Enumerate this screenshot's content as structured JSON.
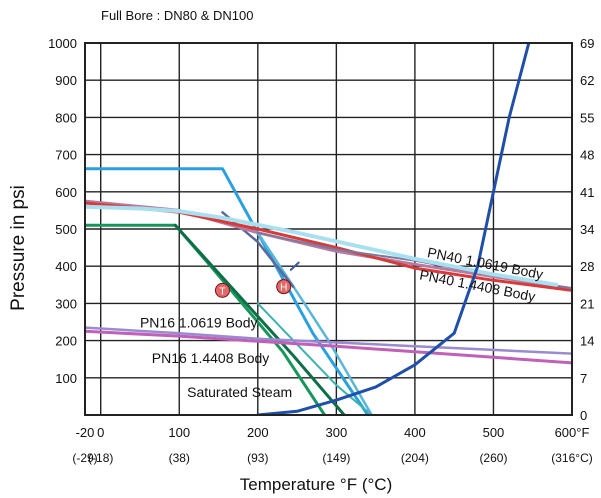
{
  "chart_data": {
    "type": "line",
    "title": "Full Bore : DN80 & DN100",
    "ylabel": "Pressure in psi",
    "xlabel": "Temperature °F (°C)",
    "xlim": [
      -20,
      600
    ],
    "ylim": [
      0,
      1000
    ],
    "grid": true,
    "x_ticks": [
      {
        "value": -20,
        "label": "-20",
        "sub": "(-29)"
      },
      {
        "value": 0,
        "label": "0",
        "sub": "(-18)"
      },
      {
        "value": 100,
        "label": "100",
        "sub": "(38)"
      },
      {
        "value": 200,
        "label": "200",
        "sub": "(93)"
      },
      {
        "value": 300,
        "label": "300",
        "sub": "(149)"
      },
      {
        "value": 400,
        "label": "400",
        "sub": "(204)"
      },
      {
        "value": 500,
        "label": "500",
        "sub": "(260)"
      },
      {
        "value": 600,
        "label": "600°F",
        "sub": "(316°C)"
      }
    ],
    "y_ticks": [
      {
        "value": 100,
        "label": "100"
      },
      {
        "value": 200,
        "label": "200"
      },
      {
        "value": 300,
        "label": "300"
      },
      {
        "value": 400,
        "label": "400"
      },
      {
        "value": 500,
        "label": "500"
      },
      {
        "value": 600,
        "label": "600"
      },
      {
        "value": 700,
        "label": "700"
      },
      {
        "value": 800,
        "label": "800"
      },
      {
        "value": 900,
        "label": "900"
      },
      {
        "value": 1000,
        "label": "1000"
      }
    ],
    "y2_ticks": [
      {
        "value": 0,
        "label": "0"
      },
      {
        "value": 100,
        "label": "7"
      },
      {
        "value": 200,
        "label": "14"
      },
      {
        "value": 300,
        "label": "21"
      },
      {
        "value": 400,
        "label": "28"
      },
      {
        "value": 500,
        "label": "34"
      },
      {
        "value": 600,
        "label": "41"
      },
      {
        "value": 700,
        "label": "48"
      },
      {
        "value": 800,
        "label": "55"
      },
      {
        "value": 900,
        "label": "62"
      },
      {
        "value": 1000,
        "label": "69"
      }
    ],
    "series": [
      {
        "name": "",
        "color": "#2aa0e0",
        "width": 3,
        "points": [
          [
            -20,
            662
          ],
          [
            155,
            662
          ],
          [
            270,
            220
          ],
          [
            340,
            0
          ]
        ]
      },
      {
        "name": "",
        "color": "#17965a",
        "width": 3,
        "points": [
          [
            -20,
            510
          ],
          [
            95,
            510
          ],
          [
            140,
            400
          ],
          [
            232,
            170
          ],
          [
            285,
            0
          ]
        ]
      },
      {
        "name": "",
        "color": "#0e6e48",
        "width": 3,
        "points": [
          [
            95,
            510
          ],
          [
            245,
            160
          ],
          [
            310,
            0
          ]
        ]
      },
      {
        "name": "",
        "color": "#3bb3b0",
        "width": 2,
        "points": [
          [
            200,
            300
          ],
          [
            300,
            80
          ],
          [
            345,
            0
          ]
        ]
      },
      {
        "name": "",
        "color": "#58b6d8",
        "width": 2.5,
        "points": [
          [
            200,
            490
          ],
          [
            250,
            330
          ],
          [
            290,
            200
          ],
          [
            345,
            0
          ]
        ]
      },
      {
        "name": "",
        "color": "#5a6a9a",
        "width": 2.5,
        "points": [
          [
            155,
            545
          ],
          [
            200,
            465
          ],
          [
            245,
            345
          ]
        ]
      },
      {
        "name": "",
        "color": "#3a5aa8",
        "width": 2,
        "points": [
          [
            242,
            390
          ],
          [
            252,
            410
          ]
        ]
      },
      {
        "name": "",
        "color": "#b87a9e",
        "width": 3,
        "points": [
          [
            -20,
            575
          ],
          [
            100,
            550
          ],
          [
            200,
            490
          ],
          [
            300,
            440
          ],
          [
            400,
            405
          ],
          [
            500,
            372
          ],
          [
            600,
            340
          ]
        ]
      },
      {
        "name": "",
        "color": "#d83a3a",
        "width": 3,
        "points": [
          [
            -20,
            570
          ],
          [
            100,
            545
          ],
          [
            200,
            500
          ],
          [
            300,
            450
          ],
          [
            400,
            395
          ],
          [
            500,
            362
          ],
          [
            600,
            335
          ]
        ]
      },
      {
        "name": "",
        "color": "#7a7aa0",
        "width": 2,
        "points": [
          [
            200,
            490
          ],
          [
            300,
            445
          ],
          [
            400,
            415
          ],
          [
            500,
            375
          ],
          [
            600,
            340
          ]
        ]
      },
      {
        "name": "",
        "color": "#a8e0f0",
        "width": 4,
        "points": [
          [
            -20,
            560
          ],
          [
            50,
            555
          ],
          [
            100,
            548
          ],
          [
            155,
            530
          ],
          [
            250,
            490
          ],
          [
            400,
            420
          ],
          [
            500,
            378
          ],
          [
            580,
            350
          ]
        ]
      },
      {
        "name": "",
        "color": "#9a8ad0",
        "width": 2.5,
        "points": [
          [
            -20,
            235
          ],
          [
            100,
            220
          ],
          [
            200,
            205
          ],
          [
            300,
            195
          ],
          [
            400,
            185
          ],
          [
            500,
            175
          ],
          [
            600,
            165
          ]
        ]
      },
      {
        "name": "",
        "color": "#c060b8",
        "width": 3,
        "points": [
          [
            -20,
            225
          ],
          [
            100,
            212
          ],
          [
            200,
            198
          ],
          [
            300,
            185
          ],
          [
            400,
            170
          ],
          [
            500,
            155
          ],
          [
            600,
            140
          ]
        ]
      },
      {
        "name": "",
        "color": "#1f4fa8",
        "width": 3,
        "points": [
          [
            200,
            0
          ],
          [
            250,
            10
          ],
          [
            300,
            40
          ],
          [
            350,
            75
          ],
          [
            400,
            135
          ],
          [
            450,
            220
          ],
          [
            480,
            400
          ],
          [
            520,
            800
          ],
          [
            545,
            1000
          ]
        ]
      }
    ],
    "annotations": [
      {
        "text": "PN40  1.0619 Body",
        "x": 415,
        "y": 425,
        "rotate": 11
      },
      {
        "text": "PN40  1.4408 Body",
        "x": 405,
        "y": 365,
        "rotate": 11
      },
      {
        "text": "PN16 1.0619 Body",
        "x": 50,
        "y": 235,
        "rotate": 0
      },
      {
        "text": "PN16   1.4408 Body",
        "x": 65,
        "y": 140,
        "rotate": 0
      },
      {
        "text": "Saturated Steam",
        "x": 110,
        "y": 48,
        "rotate": 0
      }
    ],
    "markers": [
      {
        "text": "T",
        "x": 155,
        "y": 335
      },
      {
        "text": "H",
        "x": 233,
        "y": 345
      }
    ]
  }
}
